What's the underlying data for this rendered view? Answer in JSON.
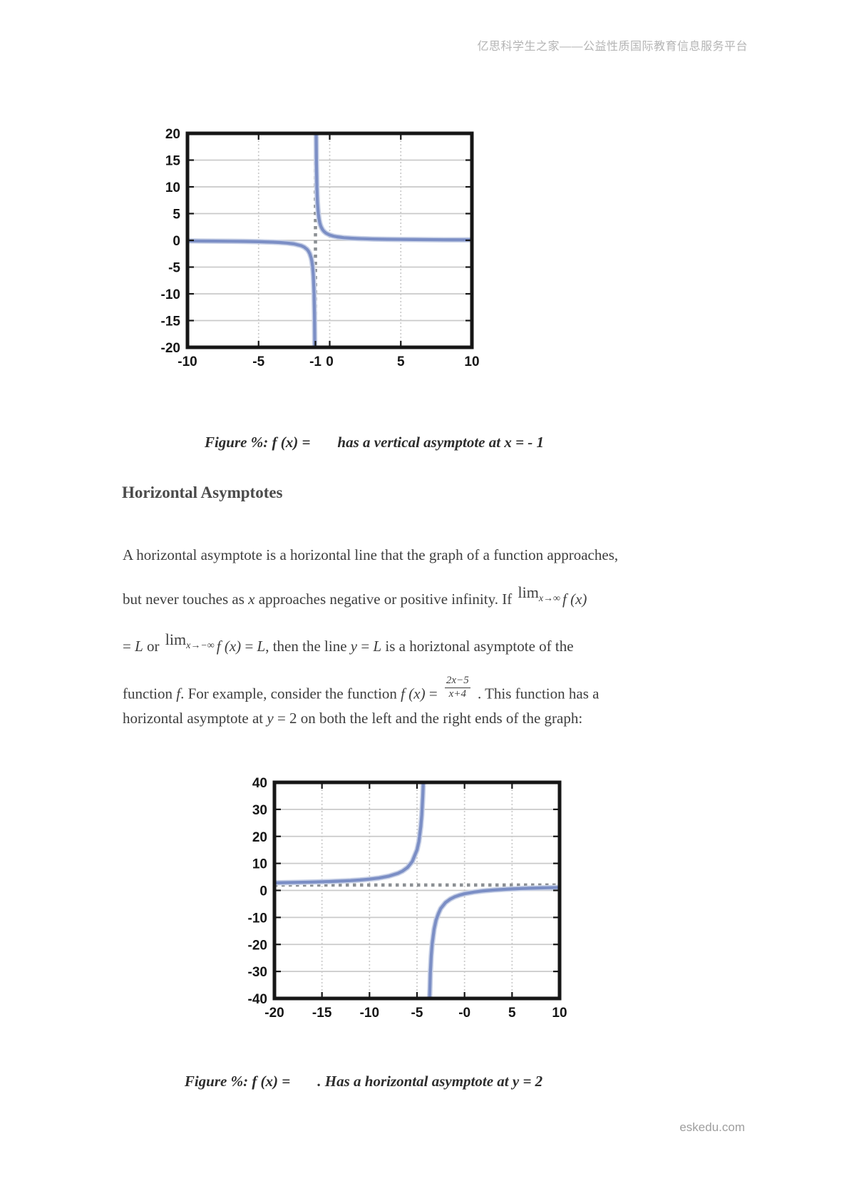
{
  "page": {
    "header": "亿思科学生之家——公益性质国际教育信息服务平台",
    "footer": "eskedu.com"
  },
  "heading": "Horizontal Asymptotes",
  "captions": {
    "figure1_prefix": "Figure %: f (x) =",
    "figure1_suffix": "has a vertical asymptote at x = - 1",
    "figure2_prefix": "Figure %: f (x) =",
    "figure2_suffix": ". Has a horizontal asymptote at y = 2"
  },
  "paragraph": {
    "l1": "A horizontal asymptote is a horizontal line that the graph of a function approaches,",
    "l2a": "but never touches as ",
    "l2b": "x",
    "l2c": " approaches negative or positive infinity. If ",
    "l2lim": "lim",
    "l2sub": "x→∞",
    "l2d": "f (x)",
    "l3a": "= ",
    "l3b": "L",
    "l3c": " or ",
    "l3lim": "lim",
    "l3sub": "x→−∞",
    "l3d": "f (x)",
    "l3e": " = ",
    "l3f": "L",
    "l3g": ", then the line ",
    "l3h": "y",
    "l3i": " = ",
    "l3j": "L",
    "l3k": " is a horiztonal asymptote of the",
    "l4a": "function ",
    "l4b": "f",
    "l4c": ". For example, consider the function ",
    "l4d": "f (x)",
    "l4e": " = ",
    "l4num": "2x−5",
    "l4den": "x+4",
    "l4f": " . This function has a",
    "l5a": "horizontal asymptote at ",
    "l5b": "y",
    "l5c": " = 2 on both the left and the right ends of the graph:"
  },
  "chart_data": [
    {
      "type": "line",
      "title": "",
      "xlabel": "",
      "ylabel": "",
      "xlim": [
        -10,
        10
      ],
      "ylim": [
        -20,
        20
      ],
      "grid": true,
      "legend": false,
      "vertical_asymptote_x": -1,
      "x_ticks": [
        {
          "v": -10,
          "label": "-10"
        },
        {
          "v": -5,
          "label": "-5"
        },
        {
          "v": -1,
          "label": "-1"
        },
        {
          "v": 0,
          "label": "0"
        },
        {
          "v": 5,
          "label": "5"
        },
        {
          "v": 10,
          "label": "10"
        }
      ],
      "y_ticks": [
        {
          "v": 20,
          "label": "20"
        },
        {
          "v": 15,
          "label": "15"
        },
        {
          "v": 10,
          "label": "10"
        },
        {
          "v": 5,
          "label": "5"
        },
        {
          "v": 0,
          "label": "0"
        },
        {
          "v": -5,
          "label": "-5"
        },
        {
          "v": -10,
          "label": "-10"
        },
        {
          "v": -15,
          "label": "-15"
        },
        {
          "v": -20,
          "label": "-20"
        }
      ],
      "x_gridlines": [
        -5,
        0,
        5
      ],
      "y_gridlines": [
        -15,
        -10,
        -5,
        0,
        5,
        10,
        15
      ],
      "asymptotes": [
        {
          "orientation": "vertical",
          "value": -1
        }
      ],
      "curve_color": "#7b8ec5",
      "series": [
        {
          "name": "left-branch",
          "points": [
            [
              -10,
              -0.11
            ],
            [
              -9,
              -0.13
            ],
            [
              -8,
              -0.14
            ],
            [
              -7,
              -0.17
            ],
            [
              -6,
              -0.2
            ],
            [
              -5,
              -0.25
            ],
            [
              -4,
              -0.33
            ],
            [
              -3.5,
              -0.4
            ],
            [
              -3,
              -0.5
            ],
            [
              -2.5,
              -0.67
            ],
            [
              -2,
              -1
            ],
            [
              -1.8,
              -1.25
            ],
            [
              -1.6,
              -1.67
            ],
            [
              -1.5,
              -2
            ],
            [
              -1.4,
              -2.5
            ],
            [
              -1.3,
              -3.33
            ],
            [
              -1.25,
              -4
            ],
            [
              -1.2,
              -5
            ],
            [
              -1.15,
              -6.67
            ],
            [
              -1.1,
              -10
            ],
            [
              -1.07,
              -14.3
            ],
            [
              -1.05,
              -20
            ],
            [
              -1.04,
              -26
            ]
          ]
        },
        {
          "name": "right-branch",
          "points": [
            [
              -0.96,
              26
            ],
            [
              -0.95,
              20
            ],
            [
              -0.93,
              14.3
            ],
            [
              -0.9,
              10
            ],
            [
              -0.86,
              7.1
            ],
            [
              -0.8,
              5
            ],
            [
              -0.75,
              4
            ],
            [
              -0.7,
              3.33
            ],
            [
              -0.65,
              2.86
            ],
            [
              -0.6,
              2.5
            ],
            [
              -0.5,
              2
            ],
            [
              -0.4,
              1.67
            ],
            [
              -0.25,
              1.33
            ],
            [
              0,
              1
            ],
            [
              0.25,
              0.8
            ],
            [
              0.5,
              0.67
            ],
            [
              1,
              0.5
            ],
            [
              1.5,
              0.4
            ],
            [
              2,
              0.33
            ],
            [
              3,
              0.25
            ],
            [
              4,
              0.2
            ],
            [
              5,
              0.17
            ],
            [
              6,
              0.14
            ],
            [
              8,
              0.11
            ],
            [
              10,
              0.09
            ]
          ]
        }
      ]
    },
    {
      "type": "line",
      "title": "",
      "xlabel": "",
      "ylabel": "",
      "function": "(2x-5)/(x+4)",
      "xlim": [
        -20,
        10
      ],
      "ylim": [
        -40,
        40
      ],
      "grid": true,
      "legend": false,
      "horizontal_asymptote_y": 2,
      "x_ticks": [
        {
          "v": -20,
          "label": "-20"
        },
        {
          "v": -15,
          "label": "-15"
        },
        {
          "v": -10,
          "label": "-10"
        },
        {
          "v": -5,
          "label": "-5"
        },
        {
          "v": 0,
          "label": "-0"
        },
        {
          "v": 5,
          "label": "5"
        },
        {
          "v": 10,
          "label": "10"
        }
      ],
      "y_ticks": [
        {
          "v": 40,
          "label": "40"
        },
        {
          "v": 30,
          "label": "30"
        },
        {
          "v": 20,
          "label": "20"
        },
        {
          "v": 10,
          "label": "10"
        },
        {
          "v": 0,
          "label": "0"
        },
        {
          "v": -10,
          "label": "-10"
        },
        {
          "v": -20,
          "label": "-20"
        },
        {
          "v": -30,
          "label": "-30"
        },
        {
          "v": -40,
          "label": "-40"
        }
      ],
      "x_gridlines": [
        -15,
        -10,
        -5,
        0,
        5
      ],
      "y_gridlines": [
        -30,
        -20,
        -10,
        0,
        10,
        20,
        30
      ],
      "asymptotes": [
        {
          "orientation": "horizontal",
          "value": 2
        }
      ],
      "curve_color": "#7b8ec5",
      "series": [
        {
          "name": "left-branch",
          "points": [
            [
              -20,
              2.81
            ],
            [
              -18,
              2.93
            ],
            [
              -16,
              3.08
            ],
            [
              -14,
              3.3
            ],
            [
              -12,
              3.63
            ],
            [
              -11,
              3.86
            ],
            [
              -10,
              4.17
            ],
            [
              -9,
              4.6
            ],
            [
              -8,
              5.25
            ],
            [
              -7,
              6.33
            ],
            [
              -6.5,
              7.2
            ],
            [
              -6,
              8.5
            ],
            [
              -5.5,
              10.67
            ],
            [
              -5,
              15
            ],
            [
              -4.8,
              18.25
            ],
            [
              -4.6,
              23.67
            ],
            [
              -4.5,
              28
            ],
            [
              -4.4,
              34.5
            ],
            [
              -4.3,
              43
            ]
          ]
        },
        {
          "name": "right-branch",
          "points": [
            [
              -3.7,
              -43
            ],
            [
              -3.65,
              -37
            ],
            [
              -3.6,
              -30.5
            ],
            [
              -3.5,
              -24
            ],
            [
              -3.4,
              -19.7
            ],
            [
              -3.2,
              -14.3
            ],
            [
              -3,
              -11
            ],
            [
              -2.75,
              -8.6
            ],
            [
              -2.5,
              -6.67
            ],
            [
              -2,
              -4.5
            ],
            [
              -1.5,
              -3.2
            ],
            [
              -1,
              -2.33
            ],
            [
              -0.5,
              -1.71
            ],
            [
              0,
              -1.25
            ],
            [
              1,
              -0.6
            ],
            [
              2,
              -0.17
            ],
            [
              3,
              0.14
            ],
            [
              4,
              0.38
            ],
            [
              5,
              0.56
            ],
            [
              6,
              0.7
            ],
            [
              7,
              0.82
            ],
            [
              8,
              0.92
            ],
            [
              9,
              1
            ],
            [
              10,
              1.07
            ]
          ]
        }
      ]
    }
  ]
}
